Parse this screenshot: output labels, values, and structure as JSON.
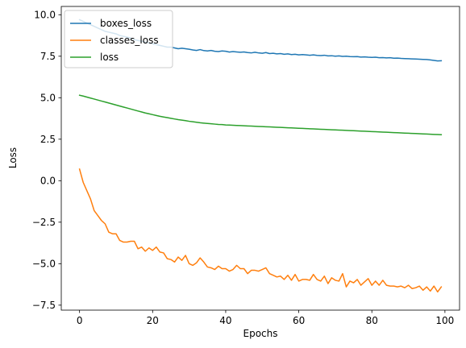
{
  "chart_data": {
    "type": "line",
    "title": "",
    "xlabel": "Epochs",
    "ylabel": "Loss",
    "xlim": [
      -5,
      104
    ],
    "ylim": [
      -7.8,
      10.5
    ],
    "xticks": [
      0,
      20,
      40,
      60,
      80,
      100
    ],
    "yticks": [
      -7.5,
      -5.0,
      -2.5,
      0.0,
      2.5,
      5.0,
      7.5,
      10.0
    ],
    "xtick_labels": [
      "0",
      "20",
      "40",
      "60",
      "80",
      "100"
    ],
    "ytick_labels": [
      "−7.5",
      "−5.0",
      "−2.5",
      "0.0",
      "2.5",
      "5.0",
      "7.5",
      "10.0"
    ],
    "grid": false,
    "legend_position": "upper-left",
    "series": [
      {
        "name": "boxes_loss",
        "color": "#1f77b4",
        "x": [
          0,
          1,
          2,
          3,
          4,
          5,
          6,
          7,
          8,
          9,
          10,
          11,
          12,
          13,
          14,
          15,
          16,
          17,
          18,
          19,
          20,
          21,
          22,
          23,
          24,
          25,
          26,
          27,
          28,
          29,
          30,
          31,
          32,
          33,
          34,
          35,
          36,
          37,
          38,
          39,
          40,
          41,
          42,
          43,
          44,
          45,
          46,
          47,
          48,
          49,
          50,
          51,
          52,
          53,
          54,
          55,
          56,
          57,
          58,
          59,
          60,
          61,
          62,
          63,
          64,
          65,
          66,
          67,
          68,
          69,
          70,
          71,
          72,
          73,
          74,
          75,
          76,
          77,
          78,
          79,
          80,
          81,
          82,
          83,
          84,
          85,
          86,
          87,
          88,
          89,
          90,
          91,
          92,
          93,
          94,
          95,
          96,
          97,
          98,
          99
        ],
        "y": [
          9.7,
          9.6,
          9.5,
          9.4,
          9.3,
          9.2,
          9.1,
          9.0,
          8.95,
          8.9,
          8.85,
          8.75,
          8.7,
          8.65,
          8.6,
          8.5,
          8.45,
          8.4,
          8.35,
          8.3,
          8.25,
          8.2,
          8.15,
          8.1,
          8.05,
          8.05,
          8.0,
          7.95,
          7.98,
          7.95,
          7.92,
          7.88,
          7.85,
          7.9,
          7.84,
          7.82,
          7.85,
          7.8,
          7.78,
          7.82,
          7.8,
          7.75,
          7.78,
          7.76,
          7.74,
          7.76,
          7.72,
          7.7,
          7.74,
          7.7,
          7.68,
          7.72,
          7.66,
          7.68,
          7.64,
          7.66,
          7.62,
          7.64,
          7.6,
          7.62,
          7.58,
          7.6,
          7.58,
          7.56,
          7.58,
          7.55,
          7.54,
          7.56,
          7.52,
          7.53,
          7.5,
          7.52,
          7.49,
          7.5,
          7.48,
          7.47,
          7.48,
          7.45,
          7.46,
          7.44,
          7.43,
          7.44,
          7.41,
          7.42,
          7.4,
          7.41,
          7.38,
          7.39,
          7.37,
          7.36,
          7.35,
          7.34,
          7.33,
          7.32,
          7.31,
          7.3,
          7.28,
          7.25,
          7.22,
          7.23
        ]
      },
      {
        "name": "classes_loss",
        "color": "#ff7f0e",
        "x": [
          0,
          1,
          2,
          3,
          4,
          5,
          6,
          7,
          8,
          9,
          10,
          11,
          12,
          13,
          14,
          15,
          16,
          17,
          18,
          19,
          20,
          21,
          22,
          23,
          24,
          25,
          26,
          27,
          28,
          29,
          30,
          31,
          32,
          33,
          34,
          35,
          36,
          37,
          38,
          39,
          40,
          41,
          42,
          43,
          44,
          45,
          46,
          47,
          48,
          49,
          50,
          51,
          52,
          53,
          54,
          55,
          56,
          57,
          58,
          59,
          60,
          61,
          62,
          63,
          64,
          65,
          66,
          67,
          68,
          69,
          70,
          71,
          72,
          73,
          74,
          75,
          76,
          77,
          78,
          79,
          80,
          81,
          82,
          83,
          84,
          85,
          86,
          87,
          88,
          89,
          90,
          91,
          92,
          93,
          94,
          95,
          96,
          97,
          98,
          99
        ],
        "y": [
          0.7,
          -0.1,
          -0.6,
          -1.1,
          -1.8,
          -2.1,
          -2.4,
          -2.6,
          -3.1,
          -3.2,
          -3.2,
          -3.6,
          -3.7,
          -3.7,
          -3.65,
          -3.65,
          -4.1,
          -4.0,
          -4.25,
          -4.05,
          -4.2,
          -4.0,
          -4.3,
          -4.35,
          -4.7,
          -4.75,
          -4.9,
          -4.6,
          -4.8,
          -4.5,
          -5.0,
          -5.1,
          -4.95,
          -4.65,
          -4.9,
          -5.2,
          -5.25,
          -5.35,
          -5.15,
          -5.3,
          -5.3,
          -5.45,
          -5.35,
          -5.1,
          -5.3,
          -5.3,
          -5.6,
          -5.4,
          -5.4,
          -5.45,
          -5.35,
          -5.25,
          -5.6,
          -5.7,
          -5.8,
          -5.75,
          -5.95,
          -5.7,
          -6.0,
          -5.65,
          -6.05,
          -5.95,
          -5.95,
          -6.0,
          -5.65,
          -5.95,
          -6.05,
          -5.75,
          -6.2,
          -5.85,
          -6.0,
          -6.05,
          -5.6,
          -6.4,
          -6.05,
          -6.15,
          -5.95,
          -6.3,
          -6.1,
          -5.9,
          -6.3,
          -6.05,
          -6.3,
          -6.0,
          -6.3,
          -6.35,
          -6.35,
          -6.4,
          -6.35,
          -6.45,
          -6.3,
          -6.5,
          -6.45,
          -6.35,
          -6.6,
          -6.4,
          -6.65,
          -6.35,
          -6.7,
          -6.4
        ]
      },
      {
        "name": "loss",
        "color": "#2ca02c",
        "x": [
          0,
          1,
          2,
          3,
          4,
          5,
          6,
          7,
          8,
          9,
          10,
          11,
          12,
          13,
          14,
          15,
          16,
          17,
          18,
          19,
          20,
          21,
          22,
          23,
          24,
          25,
          26,
          27,
          28,
          29,
          30,
          31,
          32,
          33,
          34,
          35,
          36,
          37,
          38,
          39,
          40,
          41,
          42,
          43,
          44,
          45,
          46,
          47,
          48,
          49,
          50,
          51,
          52,
          53,
          54,
          55,
          56,
          57,
          58,
          59,
          60,
          61,
          62,
          63,
          64,
          65,
          66,
          67,
          68,
          69,
          70,
          71,
          72,
          73,
          74,
          75,
          76,
          77,
          78,
          79,
          80,
          81,
          82,
          83,
          84,
          85,
          86,
          87,
          88,
          89,
          90,
          91,
          92,
          93,
          94,
          95,
          96,
          97,
          98,
          99
        ],
        "y": [
          5.15,
          5.1,
          5.04,
          4.98,
          4.92,
          4.86,
          4.8,
          4.74,
          4.68,
          4.62,
          4.56,
          4.5,
          4.44,
          4.38,
          4.32,
          4.26,
          4.2,
          4.14,
          4.08,
          4.03,
          3.98,
          3.93,
          3.88,
          3.84,
          3.8,
          3.76,
          3.72,
          3.68,
          3.65,
          3.62,
          3.58,
          3.55,
          3.52,
          3.49,
          3.47,
          3.45,
          3.43,
          3.41,
          3.39,
          3.38,
          3.36,
          3.35,
          3.34,
          3.33,
          3.32,
          3.31,
          3.3,
          3.29,
          3.28,
          3.27,
          3.26,
          3.25,
          3.24,
          3.23,
          3.22,
          3.21,
          3.2,
          3.19,
          3.18,
          3.17,
          3.16,
          3.15,
          3.14,
          3.13,
          3.12,
          3.11,
          3.1,
          3.09,
          3.08,
          3.07,
          3.06,
          3.05,
          3.04,
          3.03,
          3.02,
          3.01,
          3.0,
          2.99,
          2.98,
          2.97,
          2.96,
          2.95,
          2.94,
          2.93,
          2.92,
          2.91,
          2.9,
          2.89,
          2.88,
          2.87,
          2.86,
          2.85,
          2.84,
          2.83,
          2.82,
          2.81,
          2.8,
          2.79,
          2.78,
          2.77
        ]
      }
    ]
  }
}
